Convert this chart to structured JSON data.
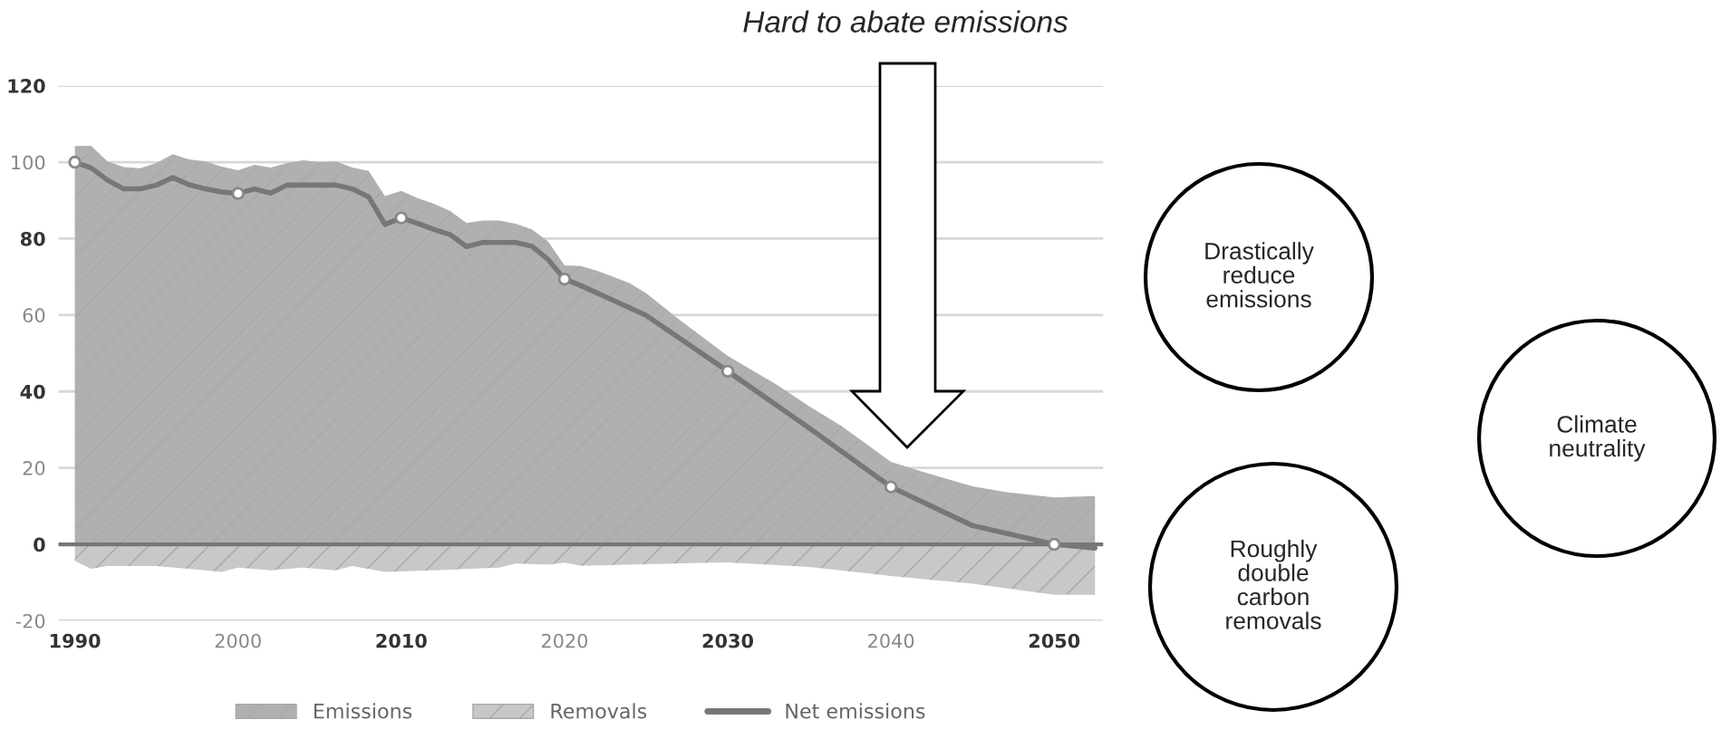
{
  "chart_data": {
    "type": "area",
    "title": "Hard to abate emissions",
    "x": [
      1990,
      1991,
      1992,
      1993,
      1994,
      1995,
      1996,
      1997,
      1998,
      1999,
      2000,
      2001,
      2002,
      2003,
      2004,
      2005,
      2006,
      2007,
      2008,
      2009,
      2010,
      2011,
      2012,
      2013,
      2014,
      2015,
      2016,
      2017,
      2018,
      2019,
      2020,
      2021,
      2022,
      2023,
      2024,
      2025,
      2027,
      2030,
      2033,
      2035,
      2037,
      2040,
      2042,
      2045,
      2047,
      2050,
      2052.5
    ],
    "series": [
      {
        "name": "Emissions",
        "color": "#b0b0b0",
        "values": [
          104.2,
          104.3,
          100.2,
          98.7,
          98.4,
          99.8,
          102.1,
          100.7,
          100.2,
          98.8,
          97.9,
          99.3,
          98.6,
          99.8,
          100.5,
          100,
          100.2,
          98.6,
          97.7,
          91.1,
          92.5,
          90.6,
          89.1,
          87.2,
          84.1,
          84.7,
          84.7,
          83.9,
          82.4,
          79.2,
          73,
          72.8,
          71.6,
          70,
          68.3,
          65.7,
          58.9,
          49.3,
          41.8,
          36.1,
          30.9,
          21.6,
          18.9,
          15.2,
          13.7,
          12.3,
          12.6
        ]
      },
      {
        "name": "Removals",
        "color": "#c8c8c8",
        "x": [
          1990,
          1991,
          1992,
          1995,
          1998,
          1999,
          2000,
          2002,
          2004,
          2006,
          2007,
          2009,
          2012,
          2016,
          2017,
          2019,
          2020,
          2021,
          2025,
          2030,
          2035,
          2040,
          2045,
          2050,
          2052.5
        ],
        "values": [
          -4.4,
          -6.4,
          -5.7,
          -5.7,
          -6.8,
          -7.2,
          -6.1,
          -6.8,
          -6.1,
          -6.8,
          -5.7,
          -7.2,
          -6.8,
          -6.1,
          -5,
          -5.3,
          -4.8,
          -5.6,
          -5.2,
          -4.7,
          -5.9,
          -8.3,
          -10.3,
          -13.2,
          -13.2
        ]
      },
      {
        "name": "Net emissions",
        "type": "line",
        "color": "#777777",
        "x": [
          1990,
          1991,
          1992,
          1993,
          1994,
          1995,
          1996,
          1997,
          1998,
          1999,
          2000,
          2001,
          2002,
          2003,
          2004,
          2005,
          2006,
          2007,
          2008,
          2009,
          2010,
          2011,
          2012,
          2013,
          2014,
          2015,
          2016,
          2017,
          2018,
          2019,
          2020,
          2021,
          2023,
          2025,
          2030,
          2035,
          2040,
          2045,
          2050,
          2052.5
        ],
        "values": [
          100,
          98.5,
          95.3,
          93,
          93,
          94,
          96,
          94.1,
          93,
          92.2,
          91.8,
          93,
          91.9,
          94,
          94,
          94,
          94,
          93,
          90.9,
          83.7,
          85.4,
          84,
          82.4,
          81,
          77.9,
          79,
          79,
          79,
          78,
          74.5,
          69.4,
          67.7,
          63.8,
          59.9,
          45.3,
          30.4,
          15,
          4.9,
          0,
          -1
        ]
      },
      {
        "type": "scatter",
        "color": "#ffffff",
        "marker": "circle",
        "x": [
          1990,
          2000,
          2010,
          2020,
          2030,
          2040,
          2050
        ],
        "values": [
          100,
          91.8,
          85.4,
          69.4,
          45.3,
          15,
          0
        ]
      }
    ],
    "xlim": [
      1989,
      2053
    ],
    "ylim": [
      -20,
      120
    ],
    "xticks": [
      1990,
      2000,
      2010,
      2020,
      2030,
      2040,
      2050
    ],
    "yticks": [
      -20,
      0,
      20,
      40,
      60,
      80,
      100,
      120
    ],
    "grid": "y",
    "legend": "bottom",
    "annotations": [
      "Drastically reduce emissions",
      "Roughly double carbon removals",
      "Climate neutrality"
    ]
  }
}
